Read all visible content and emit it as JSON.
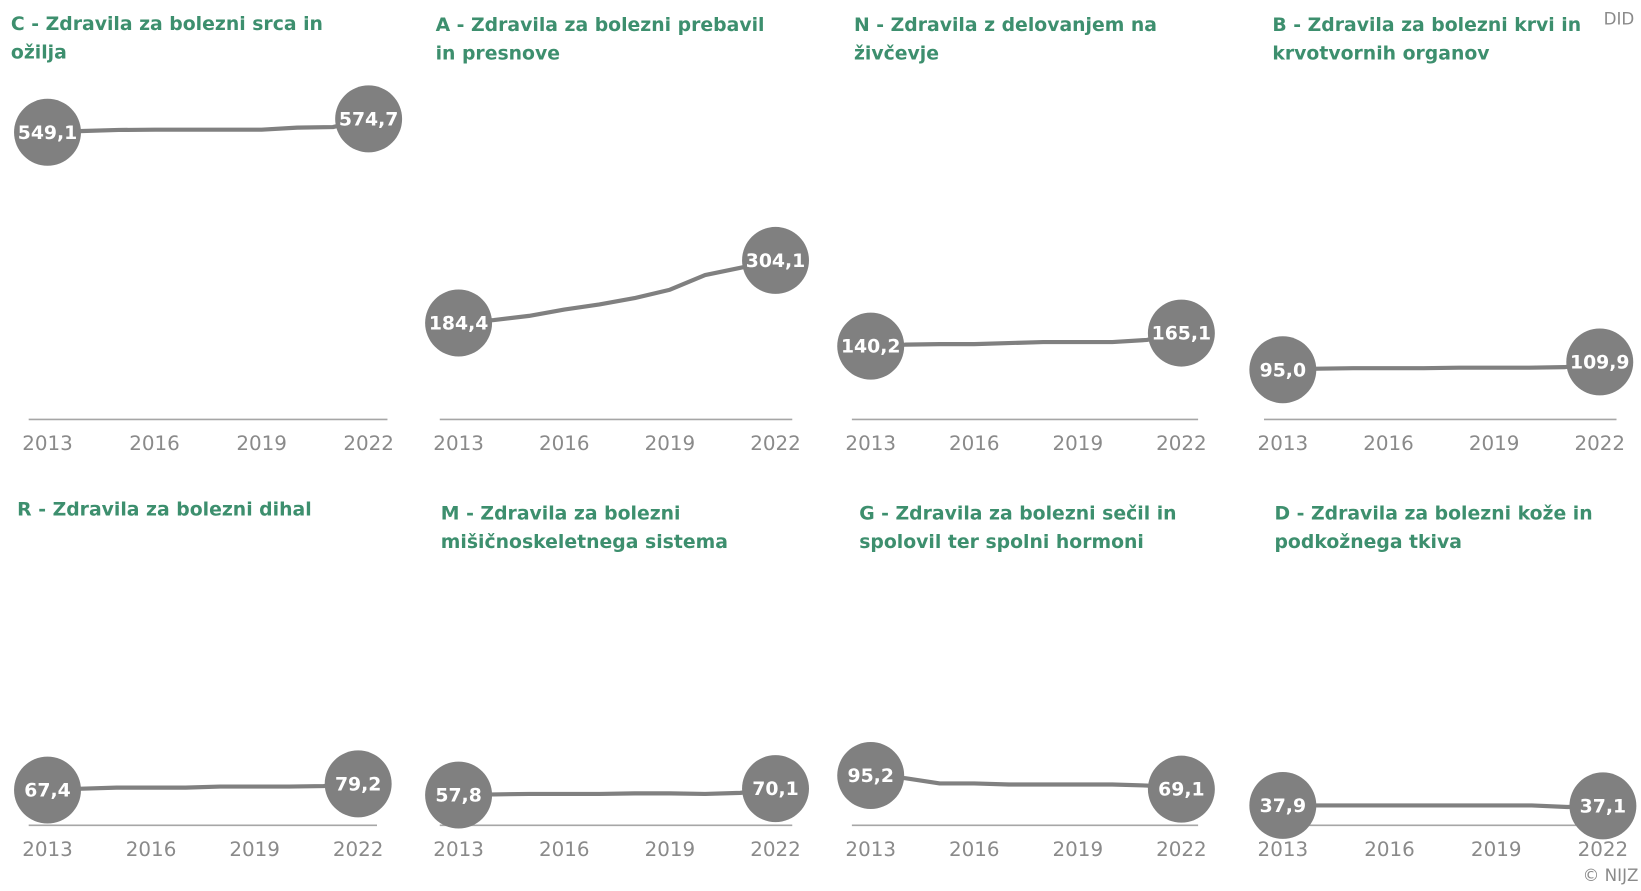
{
  "unit_label": "DID",
  "source": "© NIJZ",
  "chart_data": [
    {
      "type": "line",
      "title": "C - Zdravila za bolezni srca in ožilja",
      "x": [
        2013,
        2014,
        2015,
        2016,
        2017,
        2018,
        2019,
        2020,
        2021,
        2022
      ],
      "values": [
        549.1,
        551.5,
        553.5,
        554,
        554,
        554,
        554,
        558,
        559,
        574.7
      ],
      "value_labels": [
        "549,1",
        null,
        null,
        null,
        null,
        null,
        null,
        null,
        null,
        "574,7"
      ],
      "xlim": [
        2013,
        2022
      ],
      "xticks": [
        2013,
        2016,
        2019,
        2022
      ],
      "ylim": [
        0,
        600
      ],
      "color": "#808080"
    },
    {
      "type": "line",
      "title": "A - Zdravila za bolezni prebavil in presnove",
      "x": [
        2013,
        2014,
        2015,
        2016,
        2017,
        2018,
        2019,
        2020,
        2021,
        2022
      ],
      "values": [
        184.4,
        190,
        198,
        210,
        220,
        232,
        248,
        276,
        290,
        304.1
      ],
      "value_labels": [
        "184,4",
        null,
        null,
        null,
        null,
        null,
        null,
        null,
        null,
        "304,1"
      ],
      "xlim": [
        2013,
        2022
      ],
      "xticks": [
        2013,
        2016,
        2019,
        2022
      ],
      "ylim": [
        0,
        600
      ],
      "color": "#808080"
    },
    {
      "type": "line",
      "title": "N - Zdravila z delovanjem na živčevje",
      "x": [
        2013,
        2014,
        2015,
        2016,
        2017,
        2018,
        2019,
        2020,
        2021,
        2022
      ],
      "values": [
        140.2,
        143,
        144,
        144,
        146,
        148,
        148,
        148,
        152,
        165.1
      ],
      "value_labels": [
        "140,2",
        null,
        null,
        null,
        null,
        null,
        null,
        null,
        null,
        "165,1"
      ],
      "xlim": [
        2013,
        2022
      ],
      "xticks": [
        2013,
        2016,
        2019,
        2022
      ],
      "ylim": [
        0,
        600
      ],
      "color": "#808080"
    },
    {
      "type": "line",
      "title": "B - Zdravila za bolezni krvi in krvotvornih organov",
      "x": [
        2013,
        2014,
        2015,
        2016,
        2017,
        2018,
        2019,
        2020,
        2021,
        2022
      ],
      "values": [
        95.0,
        97,
        98,
        98,
        98,
        99,
        99,
        99,
        100,
        109.9
      ],
      "value_labels": [
        "95,0",
        null,
        null,
        null,
        null,
        null,
        null,
        null,
        null,
        "109,9"
      ],
      "xlim": [
        2013,
        2022
      ],
      "xticks": [
        2013,
        2016,
        2019,
        2022
      ],
      "ylim": [
        0,
        600
      ],
      "color": "#808080"
    },
    {
      "type": "line",
      "title": "R - Zdravila za bolezni dihal",
      "x": [
        2013,
        2014,
        2015,
        2016,
        2017,
        2018,
        2019,
        2020,
        2021,
        2022
      ],
      "values": [
        67.4,
        70,
        72,
        72,
        72,
        74,
        74,
        74,
        75,
        79.2
      ],
      "value_labels": [
        "67,4",
        null,
        null,
        null,
        null,
        null,
        null,
        null,
        null,
        "79,2"
      ],
      "xlim": [
        2013,
        2022
      ],
      "xticks": [
        2013,
        2016,
        2019,
        2022
      ],
      "ylim": [
        0,
        600
      ],
      "color": "#808080"
    },
    {
      "type": "line",
      "title": "M - Zdravila za bolezni mišičnoskeletnega sistema",
      "x": [
        2013,
        2014,
        2015,
        2016,
        2017,
        2018,
        2019,
        2020,
        2021,
        2022
      ],
      "values": [
        57.8,
        59,
        60,
        60,
        60,
        61,
        61,
        60,
        62,
        70.1
      ],
      "value_labels": [
        "57,8",
        null,
        null,
        null,
        null,
        null,
        null,
        null,
        null,
        "70,1"
      ],
      "xlim": [
        2013,
        2022
      ],
      "xticks": [
        2013,
        2016,
        2019,
        2022
      ],
      "ylim": [
        0,
        600
      ],
      "color": "#808080"
    },
    {
      "type": "line",
      "title": "G - Zdravila za bolezni sečil in spolovil ter spolni hormoni",
      "x": [
        2013,
        2014,
        2015,
        2016,
        2017,
        2018,
        2019,
        2020,
        2021,
        2022
      ],
      "values": [
        95.2,
        90,
        80,
        80,
        78,
        78,
        78,
        78,
        76,
        69.1
      ],
      "value_labels": [
        "95,2",
        null,
        null,
        null,
        null,
        null,
        null,
        null,
        null,
        "69,1"
      ],
      "xlim": [
        2013,
        2022
      ],
      "xticks": [
        2013,
        2016,
        2019,
        2022
      ],
      "ylim": [
        0,
        600
      ],
      "color": "#808080"
    },
    {
      "type": "line",
      "title": "D - Zdravila za bolezni kože in podkožnega tkiva",
      "x": [
        2013,
        2014,
        2015,
        2016,
        2017,
        2018,
        2019,
        2020,
        2021,
        2022
      ],
      "values": [
        37.9,
        37.9,
        37.9,
        37.9,
        37.9,
        37.9,
        37.9,
        37.9,
        35,
        37.1
      ],
      "value_labels": [
        "37,9",
        null,
        null,
        null,
        null,
        null,
        null,
        null,
        null,
        "37,1"
      ],
      "xlim": [
        2013,
        2022
      ],
      "xticks": [
        2013,
        2016,
        2019,
        2022
      ],
      "ylim": [
        0,
        600
      ],
      "color": "#808080"
    }
  ]
}
